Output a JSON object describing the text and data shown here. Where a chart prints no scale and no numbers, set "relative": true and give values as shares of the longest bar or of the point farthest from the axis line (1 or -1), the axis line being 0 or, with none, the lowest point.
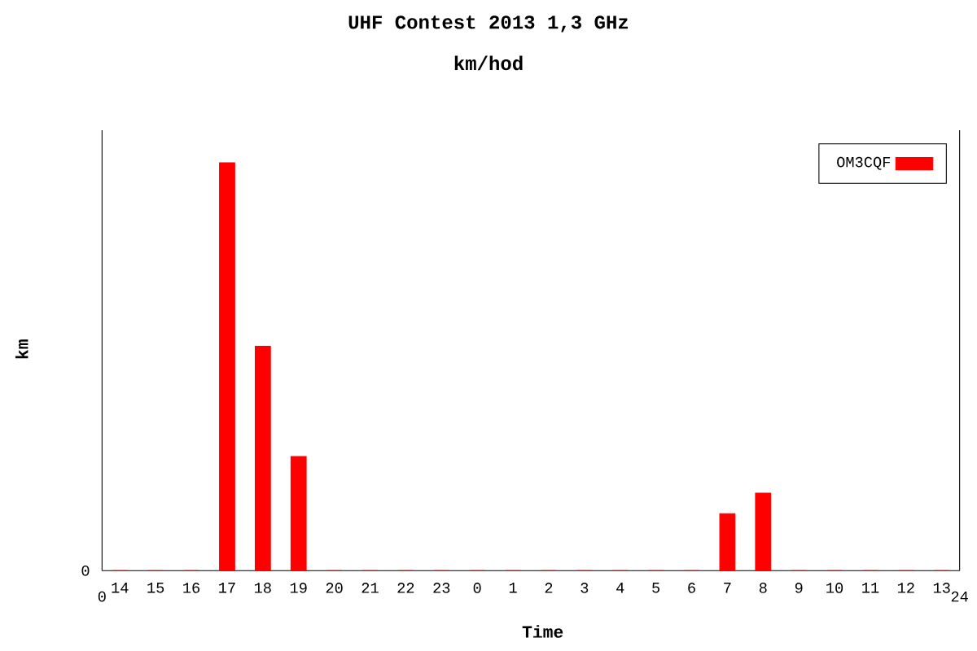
{
  "chart_data": {
    "type": "bar",
    "title": "UHF Contest 2013 1,3 GHz",
    "subtitle": "km/hod",
    "xlabel": "Time",
    "ylabel": "km",
    "categories": [
      "14",
      "15",
      "16",
      "17",
      "18",
      "19",
      "20",
      "21",
      "22",
      "23",
      "0",
      "1",
      "2",
      "3",
      "4",
      "5",
      "6",
      "7",
      "8",
      "9",
      "10",
      "11",
      "12",
      "13"
    ],
    "relative": true,
    "series": [
      {
        "name": "OM3CQF",
        "color": "#ff0000",
        "values": [
          0,
          0,
          0,
          1,
          0.55,
          0.28,
          0,
          0,
          0,
          0,
          0,
          0,
          0,
          0,
          0,
          0,
          0,
          0.14,
          0.19,
          0,
          0,
          0,
          0,
          0
        ]
      }
    ],
    "annotations": [
      "0",
      "0",
      "24"
    ],
    "legend": "top right"
  }
}
